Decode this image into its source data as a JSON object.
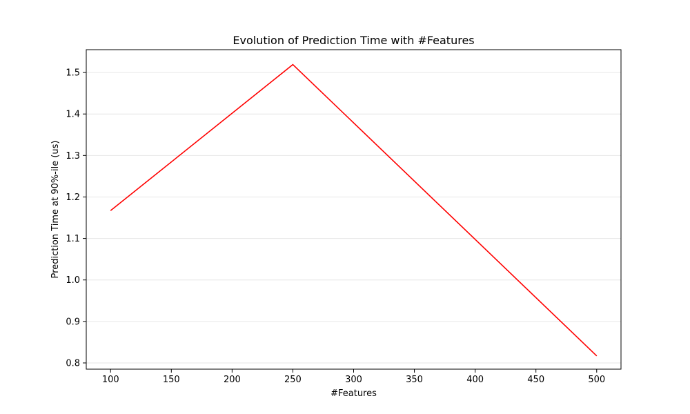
{
  "chart_data": {
    "type": "line",
    "title": "Evolution of Prediction Time with #Features",
    "xlabel": "#Features",
    "ylabel": "Prediction Time at 90%-ile (us)",
    "x": [
      100,
      250,
      500
    ],
    "series": [
      {
        "values": [
          1.167,
          1.519,
          0.817
        ],
        "color": "#ff0000"
      }
    ],
    "xlim": [
      80,
      520
    ],
    "ylim": [
      0.785,
      1.555
    ],
    "xticks": [
      100,
      150,
      200,
      250,
      300,
      350,
      400,
      450,
      500
    ],
    "yticks": [
      0.8,
      0.9,
      1.0,
      1.1,
      1.2,
      1.3,
      1.4,
      1.5
    ],
    "ytick_labels": [
      "0.8",
      "0.9",
      "1.0",
      "1.1",
      "1.2",
      "1.3",
      "1.4",
      "1.5"
    ],
    "grid": "y",
    "grid_color": "#e6e6e6"
  }
}
